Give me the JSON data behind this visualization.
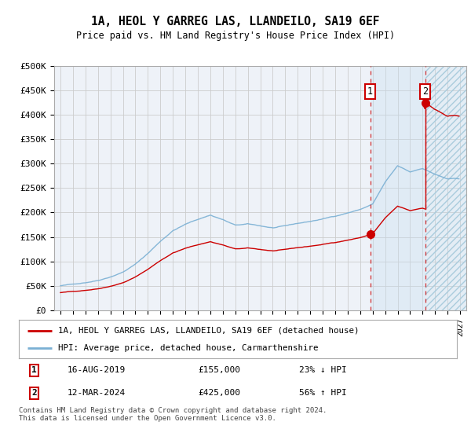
{
  "title": "1A, HEOL Y GARREG LAS, LLANDEILO, SA19 6EF",
  "subtitle": "Price paid vs. HM Land Registry's House Price Index (HPI)",
  "ylim": [
    0,
    500000
  ],
  "yticks": [
    0,
    50000,
    100000,
    150000,
    200000,
    250000,
    300000,
    350000,
    400000,
    450000,
    500000
  ],
  "ytick_labels": [
    "£0",
    "£50K",
    "£100K",
    "£150K",
    "£200K",
    "£250K",
    "£300K",
    "£350K",
    "£400K",
    "£450K",
    "£500K"
  ],
  "bg_color": "#ffffff",
  "grid_color": "#cccccc",
  "plot_bg_color": "#eef2f8",
  "hpi_color": "#7ab0d4",
  "price_color": "#cc0000",
  "sale1_year": 2019.8,
  "sale1_price": 155000,
  "sale2_year": 2024.2,
  "sale2_price": 425000,
  "annotation1_date": "16-AUG-2019",
  "annotation1_price": "£155,000",
  "annotation1_hpi": "23% ↓ HPI",
  "annotation2_date": "12-MAR-2024",
  "annotation2_price": "£425,000",
  "annotation2_hpi": "56% ↑ HPI",
  "legend_label_red": "1A, HEOL Y GARREG LAS, LLANDEILO, SA19 6EF (detached house)",
  "legend_label_blue": "HPI: Average price, detached house, Carmarthenshire",
  "footer": "Contains HM Land Registry data © Crown copyright and database right 2024.\nThis data is licensed under the Open Government Licence v3.0.",
  "xlim_start": 1994.5,
  "xlim_end": 2027.5
}
